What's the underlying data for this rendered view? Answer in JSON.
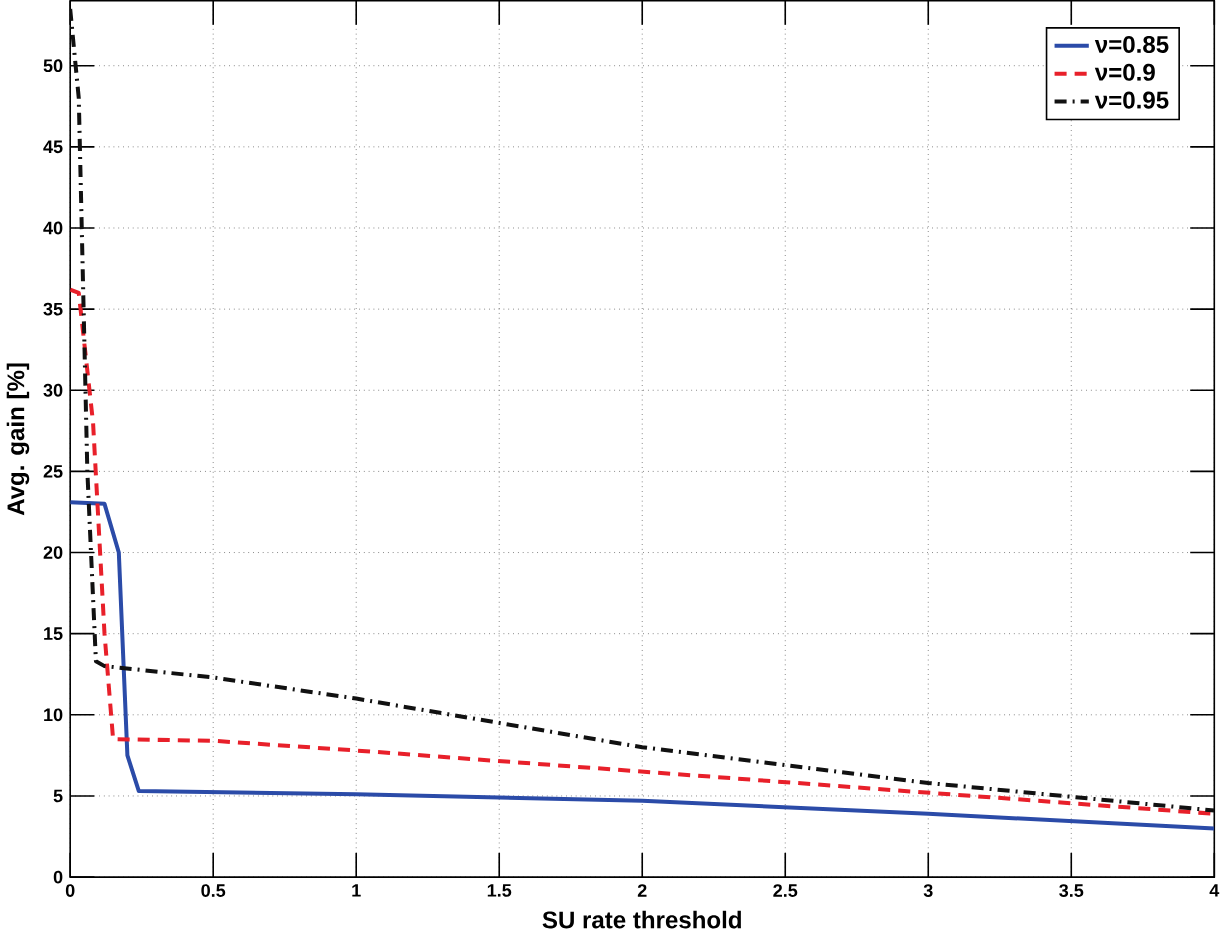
{
  "chart_data": {
    "type": "line",
    "xlabel": "SU rate threshold",
    "ylabel": "Avg. gain [%]",
    "xlim": [
      0,
      4
    ],
    "ylim": [
      0,
      54
    ],
    "xticks": [
      0,
      0.5,
      1,
      1.5,
      2,
      2.5,
      3,
      3.5,
      4
    ],
    "yticks": [
      0,
      5,
      10,
      15,
      20,
      25,
      30,
      35,
      40,
      45,
      50
    ],
    "grid": true,
    "legend": "top right",
    "series": [
      {
        "name": "ν=0.85",
        "color": "#2b4ba8",
        "line_style": "solid",
        "x": [
          0,
          0.12,
          0.17,
          0.2,
          0.24,
          1,
          2,
          3,
          4
        ],
        "values": [
          23.1,
          23,
          20,
          7.5,
          5.3,
          5.1,
          4.7,
          3.9,
          3.0
        ]
      },
      {
        "name": "ν=0.9",
        "color": "#e8202a",
        "line_style": "dashed",
        "x": [
          0,
          0.03,
          0.08,
          0.12,
          0.15,
          0.5,
          1,
          2,
          3,
          4
        ],
        "values": [
          36.2,
          36,
          28,
          15,
          8.5,
          8.4,
          7.8,
          6.5,
          5.2,
          3.9
        ]
      },
      {
        "name": "ν=0.95",
        "color": "#111111",
        "line_style": "dashdot",
        "x": [
          0,
          0.03,
          0.06,
          0.09,
          0.12,
          0.5,
          1,
          2,
          3,
          4
        ],
        "values": [
          53.5,
          48,
          25,
          13.3,
          13,
          12.3,
          11,
          8,
          5.8,
          4.1
        ]
      }
    ]
  }
}
